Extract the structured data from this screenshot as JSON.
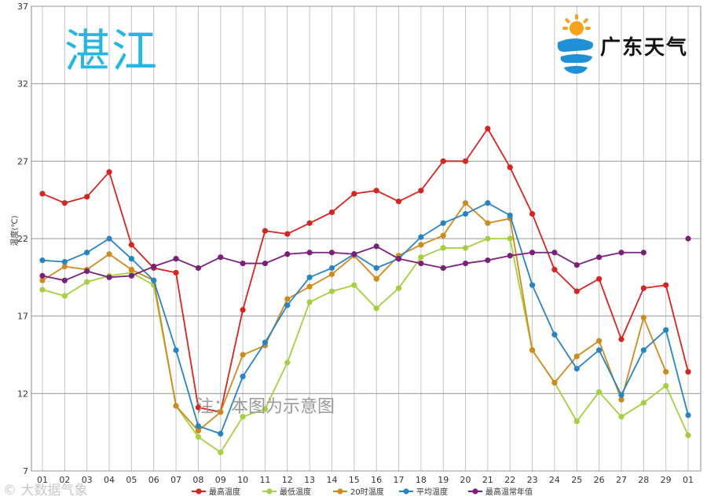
{
  "header": {
    "city": "湛江",
    "brand": "广东天气",
    "note": "注：本图为示意图",
    "watermark": "© 大数据气象"
  },
  "chart_data": {
    "type": "line",
    "ylabel": "温度(℃)",
    "ylim": [
      7,
      37
    ],
    "yticks": [
      7,
      12,
      17,
      22,
      27,
      32,
      37
    ],
    "grid": true,
    "legend_position": "bottom",
    "categories": [
      "01",
      "02",
      "03",
      "04",
      "05",
      "06",
      "07",
      "08",
      "09",
      "10",
      "11",
      "12",
      "13",
      "14",
      "15",
      "16",
      "17",
      "18",
      "19",
      "20",
      "21",
      "22",
      "23",
      "24",
      "25",
      "26",
      "27",
      "28",
      "29",
      "01"
    ],
    "series": [
      {
        "name": "最高温度",
        "color": "#d8231f",
        "values": [
          24.9,
          24.3,
          24.7,
          26.3,
          21.6,
          20.1,
          19.8,
          11.1,
          10.8,
          17.4,
          22.5,
          22.3,
          23.0,
          23.7,
          24.9,
          25.1,
          24.4,
          25.1,
          27.0,
          27.0,
          29.1,
          26.6,
          23.6,
          20.0,
          18.6,
          19.4,
          15.5,
          18.8,
          19.0,
          13.4
        ]
      },
      {
        "name": "最低温度",
        "color": "#a6cf3c",
        "values": [
          18.7,
          18.3,
          19.2,
          19.6,
          19.8,
          19.0,
          11.2,
          9.2,
          8.2,
          10.5,
          11.0,
          14.0,
          17.9,
          18.6,
          19.0,
          17.5,
          18.8,
          20.8,
          21.4,
          21.4,
          22.0,
          22.0,
          14.8,
          12.7,
          10.2,
          12.1,
          10.5,
          11.4,
          12.5,
          9.3
        ]
      },
      {
        "name": "20时温度",
        "color": "#d08a1a",
        "values": [
          19.3,
          20.2,
          20.0,
          21.0,
          20.0,
          19.3,
          11.2,
          9.6,
          10.8,
          14.5,
          15.1,
          18.1,
          18.9,
          19.7,
          20.9,
          19.4,
          20.9,
          21.6,
          22.2,
          24.3,
          23.0,
          23.3,
          14.8,
          12.7,
          14.4,
          15.4,
          11.6,
          16.9,
          13.4,
          null
        ]
      },
      {
        "name": "平均温度",
        "color": "#2584c6",
        "values": [
          20.6,
          20.5,
          21.1,
          22.0,
          20.7,
          19.3,
          14.8,
          9.9,
          9.4,
          13.1,
          15.3,
          17.7,
          19.5,
          20.1,
          21.0,
          20.1,
          20.7,
          22.1,
          23.0,
          23.6,
          24.3,
          23.5,
          19.0,
          15.8,
          13.6,
          14.8,
          11.9,
          14.8,
          16.1,
          10.6
        ]
      },
      {
        "name": "最高温常年值",
        "color": "#7a1f7a",
        "values": [
          19.6,
          19.3,
          19.9,
          19.5,
          19.6,
          20.2,
          20.7,
          20.1,
          20.8,
          20.4,
          20.4,
          21.0,
          21.1,
          21.1,
          21.0,
          21.5,
          20.7,
          20.4,
          20.1,
          20.4,
          20.6,
          20.9,
          21.1,
          21.1,
          20.3,
          20.8,
          21.1,
          21.1,
          null,
          22.0
        ]
      }
    ]
  }
}
